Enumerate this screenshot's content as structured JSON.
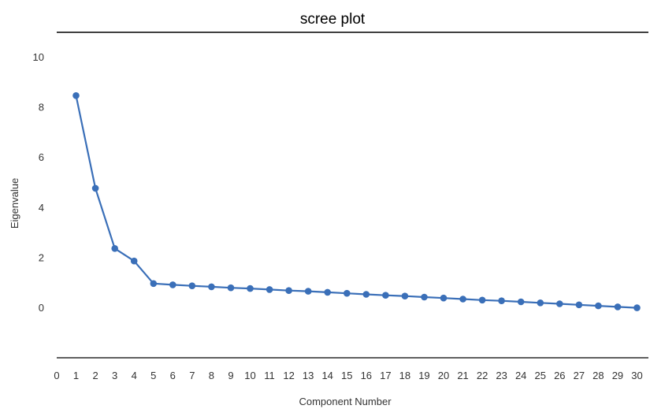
{
  "chart_data": {
    "type": "line",
    "title": "scree plot",
    "xlabel": "Component Number",
    "ylabel": "Eigenvalue",
    "x_ticks": [
      0,
      1,
      2,
      3,
      4,
      5,
      6,
      7,
      8,
      9,
      10,
      11,
      12,
      13,
      14,
      15,
      16,
      17,
      18,
      19,
      20,
      21,
      22,
      23,
      24,
      25,
      26,
      27,
      28,
      29,
      30
    ],
    "y_ticks": [
      0,
      2,
      4,
      6,
      8,
      10
    ],
    "xlim": [
      0,
      30
    ],
    "ylim": [
      -2,
      11
    ],
    "grid": false,
    "legend": "none",
    "series": [
      {
        "color": "#3a6fb8",
        "x": [
          1,
          2,
          3,
          4,
          5,
          6,
          7,
          8,
          9,
          10,
          11,
          12,
          13,
          14,
          15,
          16,
          17,
          18,
          19,
          20,
          21,
          22,
          23,
          24,
          25,
          26,
          27,
          28,
          29,
          30
        ],
        "y": [
          8.45,
          4.75,
          2.35,
          1.85,
          0.95,
          0.9,
          0.86,
          0.82,
          0.78,
          0.75,
          0.71,
          0.67,
          0.64,
          0.6,
          0.56,
          0.52,
          0.48,
          0.45,
          0.41,
          0.37,
          0.33,
          0.29,
          0.26,
          0.22,
          0.18,
          0.14,
          0.1,
          0.06,
          0.02,
          -0.02
        ]
      }
    ]
  }
}
